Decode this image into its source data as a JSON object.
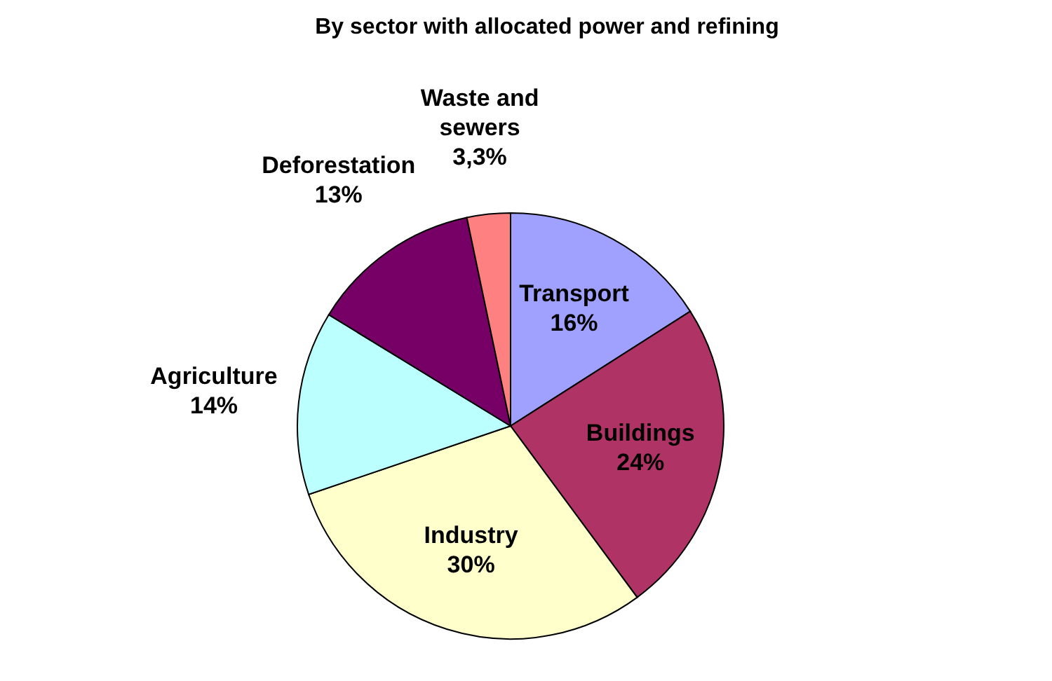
{
  "chart_data": {
    "type": "pie",
    "title": "By sector with allocated power and refining",
    "categories": [
      "Transport",
      "Buildings",
      "Industry",
      "Agriculture",
      "Deforestation",
      "Waste and sewers"
    ],
    "values": [
      16,
      24,
      30,
      14,
      13,
      3.3
    ],
    "value_labels": [
      "16%",
      "24%",
      "30%",
      "14%",
      "13%",
      "3,3%"
    ],
    "colors": [
      "#a0a0ff",
      "#b03366",
      "#ffffcc",
      "#bbffff",
      "#770066",
      "#ff8080"
    ]
  }
}
